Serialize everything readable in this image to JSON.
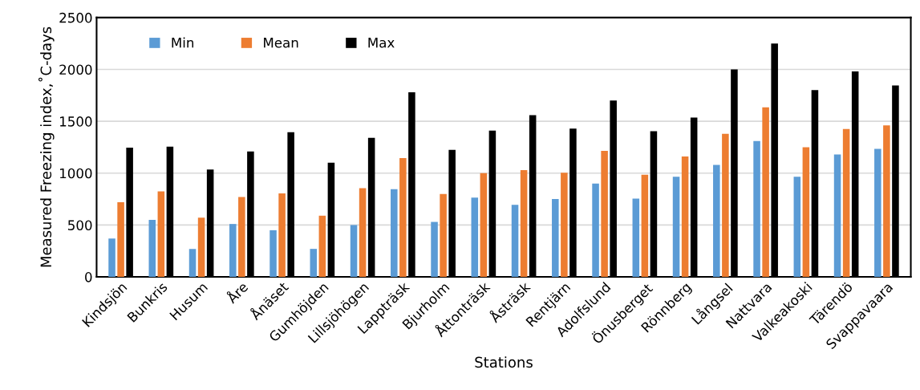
{
  "chart_data": {
    "type": "bar",
    "xlabel": "Stations",
    "ylabel": "Measured Freezing index,˚C-days",
    "categories": [
      "Kindsjön",
      "Bunkris",
      "Husum",
      "Åre",
      "Ånäset",
      "Gumhöjden",
      "Lillsjöhögen",
      "Lappträsk",
      "Bjurholm",
      "Åttonträsk",
      "Åsträsk",
      "Rentjärn",
      "Adolfslund",
      "Önusberget",
      "Rönnberg",
      "Långsel",
      "Nattvara",
      "Valkeakoski",
      "Tärendö",
      "Svappavaara"
    ],
    "series": [
      {
        "name": "Min",
        "color": "#5b9bd5",
        "values": [
          370,
          550,
          270,
          510,
          450,
          270,
          500,
          845,
          530,
          765,
          695,
          750,
          900,
          755,
          965,
          1080,
          1310,
          965,
          1180,
          1235
        ]
      },
      {
        "name": "Mean",
        "color": "#ed7d31",
        "values": [
          720,
          825,
          570,
          770,
          805,
          590,
          855,
          1145,
          800,
          1000,
          1030,
          1005,
          1215,
          985,
          1160,
          1380,
          1635,
          1250,
          1425,
          1460
        ]
      },
      {
        "name": "Max",
        "color": "#000000",
        "values": [
          1245,
          1255,
          1035,
          1210,
          1395,
          1100,
          1340,
          1780,
          1225,
          1410,
          1560,
          1430,
          1700,
          1405,
          1535,
          2000,
          2250,
          1800,
          1980,
          1845
        ]
      }
    ],
    "ylim": [
      0,
      2500
    ],
    "yticks": [
      0,
      500,
      1000,
      1500,
      2000,
      2500
    ],
    "grid": "y",
    "legend": "top left"
  }
}
